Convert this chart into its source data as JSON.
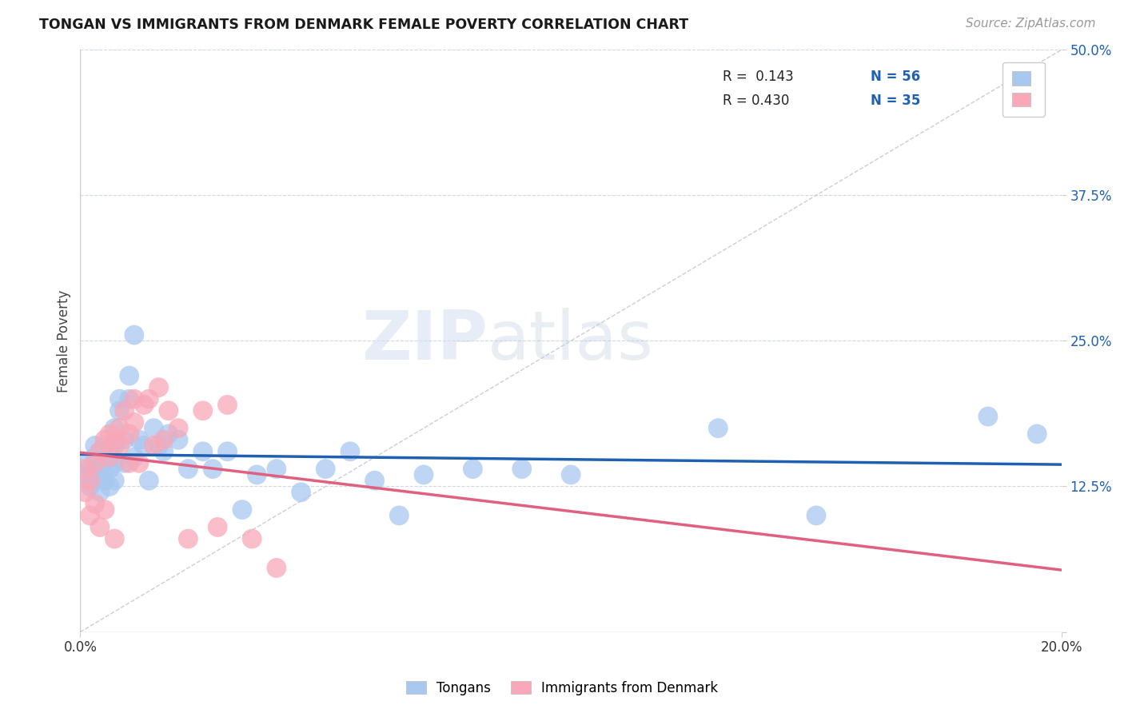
{
  "title": "TONGAN VS IMMIGRANTS FROM DENMARK FEMALE POVERTY CORRELATION CHART",
  "source": "Source: ZipAtlas.com",
  "ylabel": "Female Poverty",
  "yticks": [
    0.0,
    0.125,
    0.25,
    0.375,
    0.5
  ],
  "ytick_labels": [
    "",
    "12.5%",
    "25.0%",
    "37.5%",
    "50.0%"
  ],
  "xmin": 0.0,
  "xmax": 0.2,
  "ymin": 0.0,
  "ymax": 0.5,
  "legend_label1": "Tongans",
  "legend_label2": "Immigrants from Denmark",
  "legend_R1": "R =  0.143",
  "legend_N1": "N = 56",
  "legend_R2": "R = 0.430",
  "legend_N2": "N = 35",
  "color_blue": "#A8C8F0",
  "color_pink": "#F8A8B8",
  "line_blue": "#2060B0",
  "line_pink": "#E06080",
  "diagonal_color": "#C0C0D0",
  "watermark_zip": "ZIP",
  "watermark_atlas": "atlas",
  "tongans_x": [
    0.001,
    0.001,
    0.002,
    0.002,
    0.003,
    0.003,
    0.003,
    0.004,
    0.004,
    0.004,
    0.005,
    0.005,
    0.005,
    0.006,
    0.006,
    0.006,
    0.007,
    0.007,
    0.007,
    0.007,
    0.008,
    0.008,
    0.009,
    0.009,
    0.01,
    0.01,
    0.011,
    0.011,
    0.012,
    0.013,
    0.014,
    0.015,
    0.016,
    0.017,
    0.018,
    0.02,
    0.022,
    0.025,
    0.027,
    0.03,
    0.033,
    0.036,
    0.04,
    0.045,
    0.05,
    0.055,
    0.06,
    0.065,
    0.07,
    0.08,
    0.09,
    0.1,
    0.13,
    0.15,
    0.185,
    0.195
  ],
  "tongans_y": [
    0.135,
    0.145,
    0.125,
    0.14,
    0.13,
    0.15,
    0.16,
    0.14,
    0.155,
    0.12,
    0.13,
    0.145,
    0.16,
    0.125,
    0.14,
    0.155,
    0.13,
    0.145,
    0.16,
    0.175,
    0.19,
    0.2,
    0.165,
    0.145,
    0.2,
    0.22,
    0.15,
    0.255,
    0.165,
    0.16,
    0.13,
    0.175,
    0.16,
    0.155,
    0.17,
    0.165,
    0.14,
    0.155,
    0.14,
    0.155,
    0.105,
    0.135,
    0.14,
    0.12,
    0.14,
    0.155,
    0.13,
    0.1,
    0.135,
    0.14,
    0.14,
    0.135,
    0.175,
    0.1,
    0.185,
    0.17
  ],
  "denmark_x": [
    0.001,
    0.001,
    0.002,
    0.002,
    0.003,
    0.003,
    0.004,
    0.004,
    0.005,
    0.005,
    0.006,
    0.006,
    0.007,
    0.007,
    0.008,
    0.008,
    0.009,
    0.01,
    0.01,
    0.011,
    0.011,
    0.012,
    0.013,
    0.014,
    0.015,
    0.016,
    0.017,
    0.018,
    0.02,
    0.022,
    0.025,
    0.028,
    0.03,
    0.035,
    0.04
  ],
  "denmark_y": [
    0.14,
    0.12,
    0.1,
    0.13,
    0.11,
    0.145,
    0.155,
    0.09,
    0.105,
    0.165,
    0.17,
    0.15,
    0.165,
    0.08,
    0.175,
    0.16,
    0.19,
    0.17,
    0.145,
    0.2,
    0.18,
    0.145,
    0.195,
    0.2,
    0.16,
    0.21,
    0.165,
    0.19,
    0.175,
    0.08,
    0.19,
    0.09,
    0.195,
    0.08,
    0.055
  ]
}
